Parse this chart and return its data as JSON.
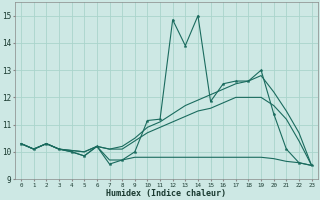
{
  "x": [
    0,
    1,
    2,
    3,
    4,
    5,
    6,
    7,
    8,
    9,
    10,
    11,
    12,
    13,
    14,
    15,
    16,
    17,
    18,
    19,
    20,
    21,
    22,
    23
  ],
  "line_main": [
    10.3,
    10.1,
    10.3,
    10.1,
    10.0,
    9.85,
    10.2,
    9.55,
    9.7,
    10.0,
    11.15,
    11.2,
    14.85,
    13.9,
    15.0,
    11.85,
    12.5,
    12.6,
    12.6,
    13.0,
    11.4,
    10.1,
    9.6,
    9.5
  ],
  "line_bot": [
    10.3,
    10.1,
    10.3,
    10.1,
    10.0,
    9.85,
    10.2,
    9.7,
    9.7,
    9.8,
    9.8,
    9.8,
    9.8,
    9.8,
    9.8,
    9.8,
    9.8,
    9.8,
    9.8,
    9.8,
    9.75,
    9.65,
    9.6,
    9.5
  ],
  "line_mid1": [
    10.3,
    10.1,
    10.3,
    10.1,
    10.05,
    10.0,
    10.2,
    10.1,
    10.1,
    10.4,
    10.7,
    10.9,
    11.1,
    11.3,
    11.5,
    11.6,
    11.8,
    12.0,
    12.0,
    12.0,
    11.7,
    11.2,
    10.4,
    9.5
  ],
  "line_mid2": [
    10.3,
    10.1,
    10.3,
    10.1,
    10.05,
    10.0,
    10.2,
    10.1,
    10.2,
    10.5,
    10.9,
    11.1,
    11.4,
    11.7,
    11.9,
    12.1,
    12.3,
    12.5,
    12.6,
    12.8,
    12.2,
    11.5,
    10.7,
    9.5
  ],
  "bg_color": "#cde8e4",
  "line_color": "#1a6b5e",
  "grid_color": "#aad4cc",
  "xlabel": "Humidex (Indice chaleur)",
  "ylim": [
    9,
    15.5
  ],
  "xlim": [
    -0.5,
    23.5
  ],
  "yticks": [
    9,
    10,
    11,
    12,
    13,
    14,
    15
  ],
  "xtick_labels": [
    "0",
    "1",
    "2",
    "3",
    "4",
    "5",
    "6",
    "7",
    "8",
    "9",
    "10",
    "11",
    "12",
    "13",
    "14",
    "15",
    "16",
    "17",
    "18",
    "19",
    "20",
    "21",
    "22",
    "23"
  ]
}
